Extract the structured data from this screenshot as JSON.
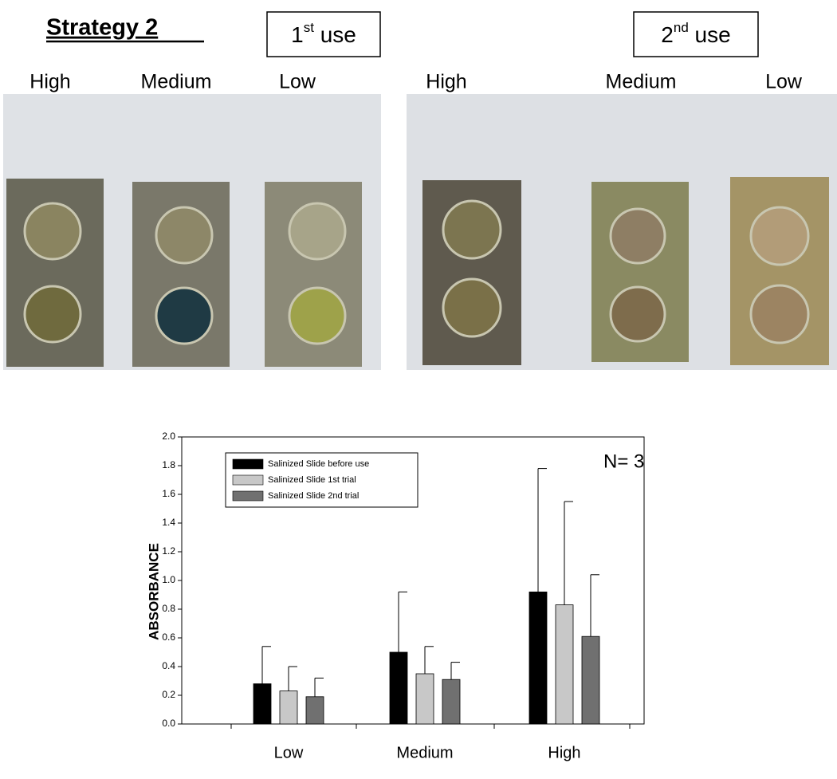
{
  "header": {
    "title": "Strategy 2",
    "panels": [
      {
        "label": [
          "1",
          "st",
          " use"
        ],
        "columns": [
          "High",
          "Medium",
          "Low"
        ]
      },
      {
        "label": [
          "2",
          "nd",
          " use"
        ],
        "columns": [
          "High",
          "Medium",
          "Low"
        ]
      }
    ]
  },
  "chart_data": {
    "type": "bar",
    "y_label": "ABSORBANCE",
    "annotation": "N= 3",
    "categories": [
      "Low",
      "Medium",
      "High"
    ],
    "series": [
      {
        "name": "Salinized Slide before use",
        "color": "#000000",
        "values": [
          0.28,
          0.5,
          0.92
        ],
        "errors": [
          0.26,
          0.42,
          0.86
        ]
      },
      {
        "name": "Salinized Slide 1st trial",
        "color": "#c8c8c8",
        "values": [
          0.23,
          0.35,
          0.83
        ],
        "errors": [
          0.17,
          0.19,
          0.72
        ]
      },
      {
        "name": "Salinized Slide 2nd trial",
        "color": "#707070",
        "values": [
          0.19,
          0.31,
          0.61
        ],
        "errors": [
          0.13,
          0.12,
          0.43
        ]
      }
    ],
    "ylim": [
      0,
      2.0
    ],
    "yticks": [
      {
        "value": 0,
        "label": "0.0"
      },
      {
        "value": 0.2,
        "label": "0.2"
      },
      {
        "value": 0.4,
        "label": "0.4"
      },
      {
        "value": 0.6,
        "label": "0.6"
      },
      {
        "value": 0.8,
        "label": "0.8"
      },
      {
        "value": 1.0,
        "label": "1.0"
      },
      {
        "value": 1.2,
        "label": "1.2"
      },
      {
        "value": 1.4,
        "label": "1.4"
      },
      {
        "value": 1.6,
        "label": "1.6"
      },
      {
        "value": 1.8,
        "label": "1.8"
      },
      {
        "value": 2.0,
        "label": "2.0"
      }
    ],
    "legend": "upper left"
  }
}
